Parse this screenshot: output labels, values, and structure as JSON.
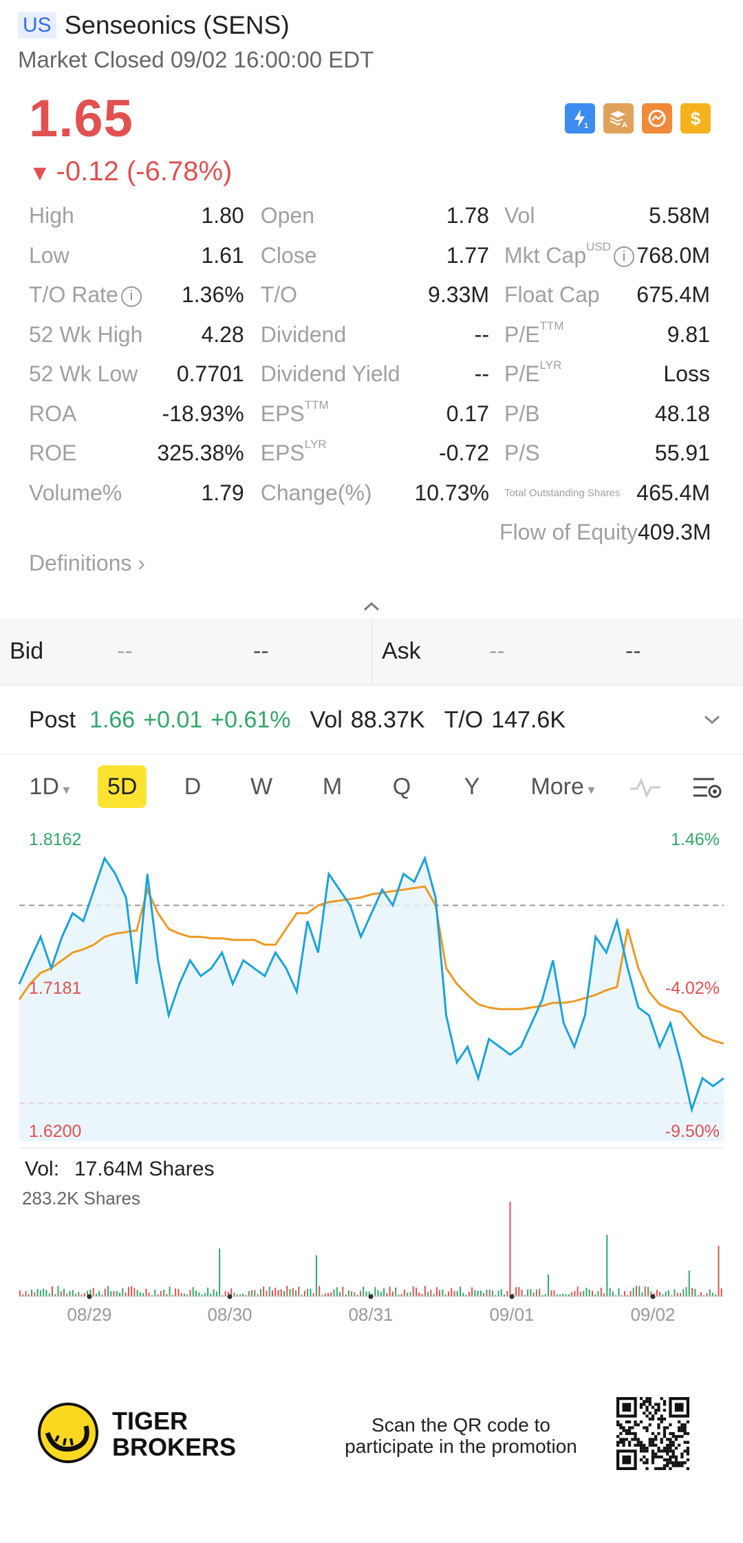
{
  "header": {
    "market_badge": "US",
    "title": "Senseonics (SENS)",
    "status": "Market Closed 09/02 16:00:00 EDT"
  },
  "quote": {
    "price": "1.65",
    "change": "-0.12 (-6.78%)",
    "change_arrow": "▼",
    "color_down": "#e25050",
    "color_up": "#2fa96a"
  },
  "badges": [
    {
      "icon": "lightning-level-1-icon",
      "color": "#3d8cf0"
    },
    {
      "icon": "layers-a-icon",
      "color": "#e0a25a"
    },
    {
      "icon": "chart-circle-icon",
      "color": "#f08a3a"
    },
    {
      "icon": "dollar-icon",
      "color": "#f5b21c"
    }
  ],
  "stats": [
    [
      {
        "label": "High",
        "val": "1.80"
      },
      {
        "label": "Open",
        "val": "1.78"
      },
      {
        "label": "Vol",
        "val": "5.58M"
      }
    ],
    [
      {
        "label": "Low",
        "val": "1.61"
      },
      {
        "label": "Close",
        "val": "1.77"
      },
      {
        "label": "Mkt Cap",
        "sup": "USD",
        "info": true,
        "val": "768.0M"
      }
    ],
    [
      {
        "label": "T/O Rate",
        "info": true,
        "val": "1.36%"
      },
      {
        "label": "T/O",
        "val": "9.33M"
      },
      {
        "label": "Float Cap",
        "val": "675.4M"
      }
    ],
    [
      {
        "label": "52 Wk High",
        "val": "4.28"
      },
      {
        "label": "Dividend",
        "val": "--"
      },
      {
        "label": "P/E",
        "sup": "TTM",
        "val": "9.81"
      }
    ],
    [
      {
        "label": "52 Wk Low",
        "val": "0.7701"
      },
      {
        "label": "Dividend Yield",
        "val": "--"
      },
      {
        "label": "P/E",
        "sup": "LYR",
        "val": "Loss"
      }
    ],
    [
      {
        "label": "ROA",
        "val": "-18.93%"
      },
      {
        "label": "EPS",
        "sup": "TTM",
        "val": "0.17"
      },
      {
        "label": "P/B",
        "val": "48.18"
      }
    ],
    [
      {
        "label": "ROE",
        "val": "325.38%"
      },
      {
        "label": "EPS",
        "sup": "LYR",
        "val": "-0.72"
      },
      {
        "label": "P/S",
        "val": "55.91"
      }
    ],
    [
      {
        "label": "Volume%",
        "val": "1.79"
      },
      {
        "label": "Change(%)",
        "val": "10.73%"
      },
      {
        "label": "Total Outstanding Shares",
        "tiny": true,
        "val": "465.4M"
      }
    ],
    [
      null,
      null,
      {
        "label": "Flow of Equity",
        "val": "409.3M"
      }
    ]
  ],
  "definitions_label": "Definitions",
  "bid": {
    "label": "Bid",
    "price": "--",
    "size": "--"
  },
  "ask": {
    "label": "Ask",
    "price": "--",
    "size": "--"
  },
  "post": {
    "label": "Post",
    "price": "1.66",
    "change": "+0.01",
    "pct": "+0.61%",
    "vol_label": "Vol",
    "vol": "88.37K",
    "to_label": "T/O",
    "to": "147.6K"
  },
  "tabs": [
    "1D",
    "5D",
    "D",
    "W",
    "M",
    "Q",
    "Y",
    "More"
  ],
  "active_tab": "5D",
  "chart_data": {
    "type": "line",
    "y_labels_left": [
      "1.8162",
      "1.7181",
      "1.6200"
    ],
    "y_labels_right": [
      "1.46%",
      "-4.02%",
      "-9.50%"
    ],
    "ylim": [
      1.62,
      1.8162
    ],
    "prev_close": 1.77,
    "low_line": 1.644,
    "x_ticks": [
      "08/29",
      "08/30",
      "08/31",
      "09/01",
      "09/02"
    ],
    "price_series": [
      1.72,
      1.735,
      1.75,
      1.73,
      1.75,
      1.765,
      1.76,
      1.78,
      1.8,
      1.79,
      1.775,
      1.72,
      1.79,
      1.735,
      1.7,
      1.72,
      1.735,
      1.725,
      1.73,
      1.74,
      1.72,
      1.735,
      1.73,
      1.725,
      1.74,
      1.73,
      1.715,
      1.76,
      1.74,
      1.79,
      1.78,
      1.77,
      1.75,
      1.765,
      1.78,
      1.77,
      1.79,
      1.785,
      1.8,
      1.775,
      1.7,
      1.67,
      1.68,
      1.66,
      1.685,
      1.68,
      1.675,
      1.68,
      1.695,
      1.71,
      1.735,
      1.695,
      1.68,
      1.7,
      1.75,
      1.74,
      1.76,
      1.73,
      1.705,
      1.7,
      1.68,
      1.695,
      1.67,
      1.64,
      1.66,
      1.655,
      1.66
    ],
    "avg_series": [
      1.71,
      1.72,
      1.727,
      1.73,
      1.735,
      1.74,
      1.742,
      1.745,
      1.75,
      1.752,
      1.753,
      1.754,
      1.78,
      1.765,
      1.755,
      1.752,
      1.75,
      1.75,
      1.749,
      1.749,
      1.748,
      1.748,
      1.748,
      1.745,
      1.745,
      1.755,
      1.765,
      1.765,
      1.77,
      1.772,
      1.773,
      1.774,
      1.775,
      1.777,
      1.778,
      1.779,
      1.78,
      1.781,
      1.782,
      1.77,
      1.73,
      1.72,
      1.713,
      1.707,
      1.705,
      1.704,
      1.704,
      1.704,
      1.705,
      1.706,
      1.708,
      1.708,
      1.709,
      1.711,
      1.713,
      1.716,
      1.718,
      1.755,
      1.73,
      1.715,
      1.707,
      1.704,
      1.702,
      1.694,
      1.687,
      1.684,
      1.682
    ],
    "vol_label": "Vol:",
    "vol_total": "17.64M Shares",
    "vol_max": "283.2K Shares"
  },
  "footer": {
    "brand_line1": "TIGER",
    "brand_line2": "BROKERS",
    "promo_line1": "Scan the QR code to",
    "promo_line2": "participate in the promotion"
  }
}
